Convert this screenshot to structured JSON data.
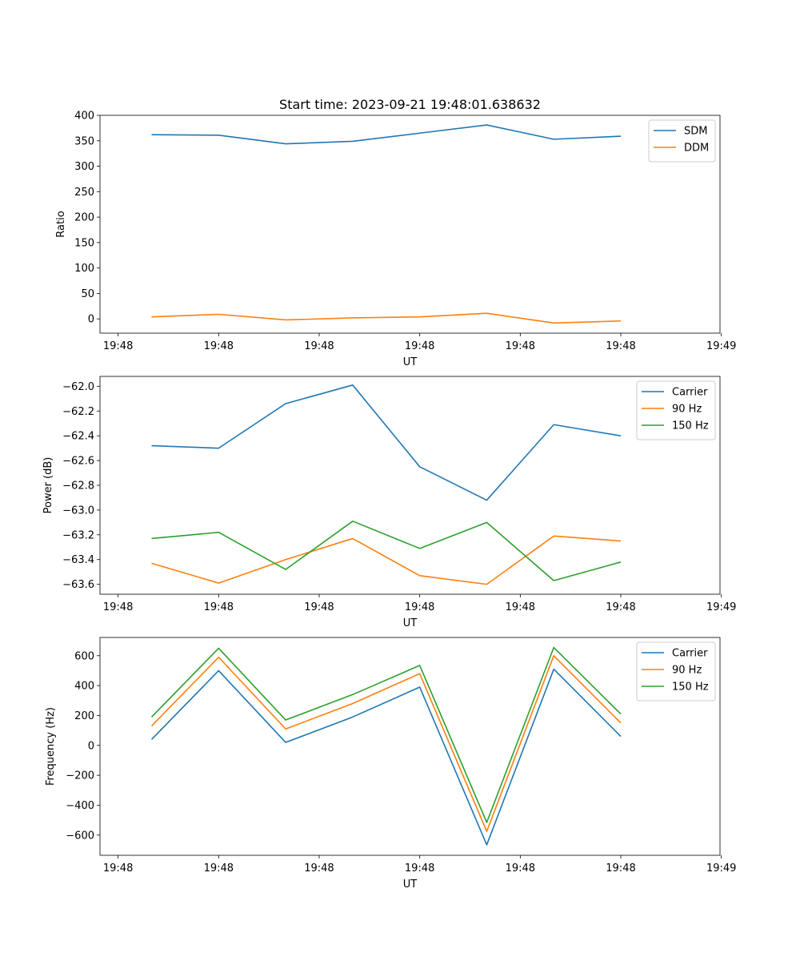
{
  "figure_title": "Start time: 2023-09-21 19:48:01.638632",
  "colors": {
    "series1": "#1f77b4",
    "series2": "#ff7f0e",
    "series3": "#2ca02c"
  },
  "chart_data": [
    {
      "type": "line",
      "title": "Start time: 2023-09-21 19:48:01.638632",
      "xlabel": "UT",
      "ylabel": "Ratio",
      "xlim": [
        -0.77,
        8.48
      ],
      "ylim": [
        -28,
        400
      ],
      "x_ticks": [
        {
          "v": -0.5,
          "label": "19:48"
        },
        {
          "v": 1,
          "label": "19:48"
        },
        {
          "v": 2.5,
          "label": "19:48"
        },
        {
          "v": 4,
          "label": "19:48"
        },
        {
          "v": 5.5,
          "label": "19:48"
        },
        {
          "v": 7,
          "label": "19:48"
        },
        {
          "v": 8.5,
          "label": "19:49"
        }
      ],
      "y_ticks": [
        0,
        50,
        100,
        150,
        200,
        250,
        300,
        350,
        400
      ],
      "y_tick_labels": [
        "0",
        "50",
        "100",
        "150",
        "200",
        "250",
        "300",
        "350",
        "400"
      ],
      "x": [
        0,
        1,
        2,
        3,
        4,
        5,
        6,
        7
      ],
      "legend_position": "top-right",
      "series": [
        {
          "name": "SDM",
          "color": "#1f77b4",
          "values": [
            362,
            361,
            344,
            349,
            365,
            381,
            353,
            359
          ]
        },
        {
          "name": "DDM",
          "color": "#ff7f0e",
          "values": [
            4,
            9,
            -2,
            2,
            4,
            11,
            -8,
            -4
          ]
        }
      ]
    },
    {
      "type": "line",
      "title": "",
      "xlabel": "UT",
      "ylabel": "Power (dB)",
      "xlim": [
        -0.77,
        8.48
      ],
      "ylim": [
        -63.68,
        -61.92
      ],
      "x_ticks": [
        {
          "v": -0.5,
          "label": "19:48"
        },
        {
          "v": 1,
          "label": "19:48"
        },
        {
          "v": 2.5,
          "label": "19:48"
        },
        {
          "v": 4,
          "label": "19:48"
        },
        {
          "v": 5.5,
          "label": "19:48"
        },
        {
          "v": 7,
          "label": "19:48"
        },
        {
          "v": 8.5,
          "label": "19:49"
        }
      ],
      "y_ticks": [
        -63.6,
        -63.4,
        -63.2,
        -63.0,
        -62.8,
        -62.6,
        -62.4,
        -62.2,
        -62.0
      ],
      "y_tick_labels": [
        "−63.6",
        "−63.4",
        "−63.2",
        "−63.0",
        "−62.8",
        "−62.6",
        "−62.4",
        "−62.2",
        "−62.0"
      ],
      "x": [
        0,
        1,
        2,
        3,
        4,
        5,
        6,
        7
      ],
      "legend_position": "top-right",
      "series": [
        {
          "name": "Carrier",
          "color": "#1f77b4",
          "values": [
            -62.48,
            -62.5,
            -62.14,
            -61.99,
            -62.65,
            -62.92,
            -62.31,
            -62.4
          ]
        },
        {
          "name": "90 Hz",
          "color": "#ff7f0e",
          "values": [
            -63.43,
            -63.59,
            -63.4,
            -63.23,
            -63.53,
            -63.6,
            -63.21,
            -63.25
          ]
        },
        {
          "name": "150 Hz",
          "color": "#2ca02c",
          "values": [
            -63.23,
            -63.18,
            -63.48,
            -63.09,
            -63.31,
            -63.1,
            -63.57,
            -63.42
          ]
        }
      ]
    },
    {
      "type": "line",
      "title": "",
      "xlabel": "UT",
      "ylabel": "Frequency (Hz)",
      "xlim": [
        -0.77,
        8.48
      ],
      "ylim": [
        -735,
        722
      ],
      "x_ticks": [
        {
          "v": -0.5,
          "label": "19:48"
        },
        {
          "v": 1,
          "label": "19:48"
        },
        {
          "v": 2.5,
          "label": "19:48"
        },
        {
          "v": 4,
          "label": "19:48"
        },
        {
          "v": 5.5,
          "label": "19:48"
        },
        {
          "v": 7,
          "label": "19:48"
        },
        {
          "v": 8.5,
          "label": "19:49"
        }
      ],
      "y_ticks": [
        -600,
        -400,
        -200,
        0,
        200,
        400,
        600
      ],
      "y_tick_labels": [
        "−600",
        "−400",
        "−200",
        "0",
        "200",
        "400",
        "600"
      ],
      "x": [
        0,
        1,
        2,
        3,
        4,
        5,
        6,
        7
      ],
      "legend_position": "top-right",
      "series": [
        {
          "name": "Carrier",
          "color": "#1f77b4",
          "values": [
            40,
            500,
            20,
            190,
            390,
            -665,
            510,
            60
          ]
        },
        {
          "name": "90 Hz",
          "color": "#ff7f0e",
          "values": [
            130,
            590,
            110,
            280,
            480,
            -575,
            600,
            150
          ]
        },
        {
          "name": "150 Hz",
          "color": "#2ca02c",
          "values": [
            190,
            650,
            170,
            340,
            535,
            -515,
            655,
            210
          ]
        }
      ]
    }
  ]
}
